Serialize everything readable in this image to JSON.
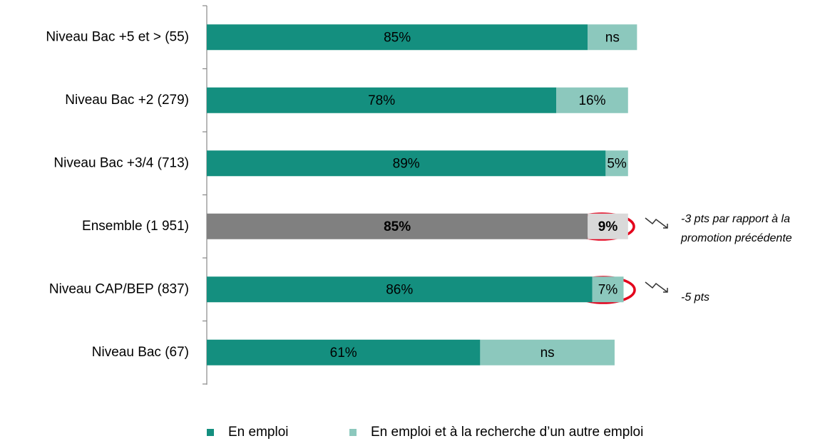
{
  "chart_data": {
    "type": "stacked_bar_horizontal",
    "categories": [
      "Niveau Bac +5 et > (55)",
      "Niveau Bac +2 (279)",
      "Niveau Bac +3/4 (713)",
      "Ensemble (1 951)",
      "Niveau CAP/BEP (837)",
      "Niveau Bac (67)"
    ],
    "series": [
      {
        "name": "En emploi",
        "color": "#148f7f",
        "values": [
          85,
          78,
          89,
          85,
          86,
          61
        ],
        "value_labels": [
          "85%",
          "78%",
          "89%",
          "85%",
          "86%",
          "61%"
        ]
      },
      {
        "name": "En emploi et à la recherche d’un autre emploi",
        "color": "#8cc8bd",
        "values": [
          11,
          16,
          5,
          9,
          7,
          30
        ],
        "value_labels": [
          "ns",
          "16%",
          "5%",
          "9%",
          "7%",
          "ns"
        ]
      }
    ],
    "highlight": {
      "index": 3,
      "colors": [
        "#808080",
        "#d9d9d9"
      ]
    },
    "annotations": [
      {
        "lines": [
          "-3 pts par rapport à la",
          "promotion précédente"
        ]
      },
      {
        "lines": [
          "-5 pts"
        ]
      }
    ]
  }
}
